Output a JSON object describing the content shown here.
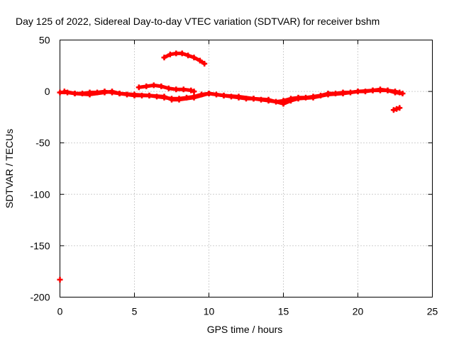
{
  "chart_data": {
    "type": "scatter",
    "title": "Day 125 of 2022, Sidereal Day-to-day VTEC variation (SDTVAR) for receiver bshm",
    "xlabel": "GPS time / hours",
    "ylabel": "SDTVAR / TECUs",
    "xlim": [
      0,
      25
    ],
    "ylim": [
      -200,
      50
    ],
    "xticks": [
      0,
      5,
      10,
      15,
      20,
      25
    ],
    "yticks": [
      -200,
      -150,
      -100,
      -50,
      0,
      50
    ],
    "xtick_labels": [
      "0",
      "5",
      "10",
      "15",
      "20",
      "25"
    ],
    "ytick_labels": [
      "-200",
      "-150",
      "-100",
      "-50",
      "0",
      "50"
    ],
    "grid": true,
    "marker_color": "#ff0000",
    "series": [
      {
        "name": "main trace",
        "x": [
          0.0,
          0.5,
          1.0,
          1.5,
          2.0,
          2.5,
          3.0,
          3.5,
          4.0,
          4.5,
          5.0,
          5.5,
          6.0,
          6.5,
          7.0,
          7.5,
          8.0,
          8.5,
          9.0,
          9.5,
          10.0,
          10.5,
          11.0,
          11.5,
          12.0,
          12.5,
          13.0,
          13.5,
          14.0,
          14.5,
          15.0,
          15.5,
          16.0,
          16.5,
          17.0,
          17.5,
          18.0,
          18.5,
          19.0,
          19.5,
          20.0,
          20.5,
          21.0,
          21.5,
          22.0,
          22.5,
          22.8
        ],
        "y": [
          -1,
          -1,
          -2,
          -2,
          -1,
          -1,
          0,
          -1,
          -2,
          -3,
          -4,
          -4,
          -4,
          -5,
          -6,
          -7,
          -7,
          -6,
          -5,
          -3,
          -2,
          -3,
          -4,
          -5,
          -6,
          -7,
          -7,
          -8,
          -9,
          -10,
          -9,
          -7,
          -6,
          -6,
          -5,
          -4,
          -2,
          -2,
          -1,
          -1,
          0,
          0,
          1,
          1,
          1,
          0,
          -1
        ]
      },
      {
        "name": "secondary trace",
        "x": [
          0.3,
          1.0,
          2.0,
          3.0,
          3.5,
          4.0,
          5.0,
          6.0,
          7.0,
          7.5,
          8.0,
          9.0,
          10.0,
          11.0,
          12.0,
          13.0,
          14.0,
          15.0,
          15.5,
          16.0,
          17.0,
          18.0,
          19.0,
          20.0,
          21.0,
          21.5,
          22.0,
          22.5,
          23.0
        ],
        "y": [
          0,
          -2,
          -3,
          -1,
          0,
          -2,
          -3,
          -4,
          -5,
          -8,
          -8,
          -6,
          -2,
          -4,
          -5,
          -7,
          -8,
          -12,
          -9,
          -7,
          -6,
          -3,
          -2,
          0,
          1,
          2,
          1,
          -1,
          -2
        ]
      },
      {
        "name": "arc near 6h",
        "x": [
          5.3,
          5.8,
          6.3,
          6.8,
          7.3,
          7.8,
          8.3,
          8.8,
          9.0
        ],
        "y": [
          4,
          5,
          6,
          5,
          3,
          2,
          2,
          1,
          0
        ]
      },
      {
        "name": "high arc near 8h",
        "x": [
          7.0,
          7.4,
          7.8,
          8.2,
          8.6,
          9.0,
          9.4,
          9.7
        ],
        "y": [
          33,
          36,
          37,
          37,
          35,
          33,
          30,
          27
        ]
      },
      {
        "name": "dip near 22.5h",
        "x": [
          22.4,
          22.6,
          22.8
        ],
        "y": [
          -18,
          -17,
          -16
        ]
      },
      {
        "name": "outlier",
        "x": [
          0.0
        ],
        "y": [
          -183
        ]
      }
    ]
  }
}
